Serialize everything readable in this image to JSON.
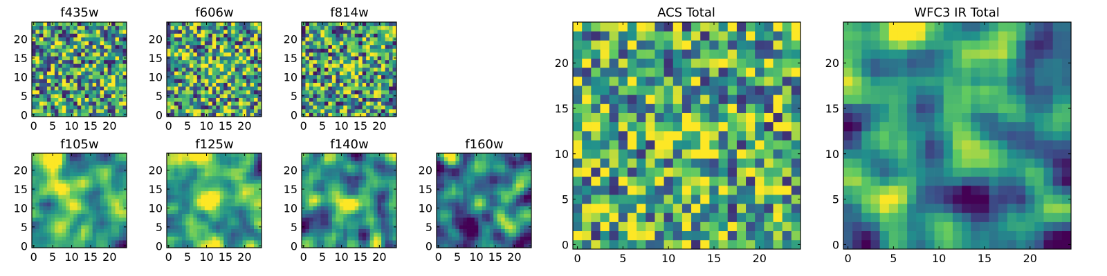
{
  "figure": {
    "colormap": "viridis",
    "colormap_stops": [
      "#440154",
      "#3b528b",
      "#21918c",
      "#5ec962",
      "#fde725"
    ],
    "axes_color": "#000000",
    "background": "#ffffff"
  },
  "chart_data": [
    {
      "type": "heatmap",
      "title": "f435w",
      "grid_size": 25,
      "xlim": [
        0,
        24
      ],
      "ylim": [
        0,
        24
      ],
      "xticks": [
        0,
        5,
        10,
        15,
        20
      ],
      "yticks": [
        0,
        5,
        10,
        15,
        20
      ],
      "texture": "pixel-noise",
      "smoothness": 0,
      "seed": 11,
      "bias": 0.08,
      "spread": 1.0,
      "warm_spots": []
    },
    {
      "type": "heatmap",
      "title": "f606w",
      "grid_size": 25,
      "xlim": [
        0,
        24
      ],
      "ylim": [
        0,
        24
      ],
      "xticks": [
        0,
        5,
        10,
        15,
        20
      ],
      "yticks": [
        0,
        5,
        10,
        15,
        20
      ],
      "texture": "pixel-noise",
      "smoothness": 0,
      "seed": 23,
      "bias": 0.08,
      "spread": 1.0,
      "warm_spots": [
        [
          13,
          12,
          0.35
        ]
      ]
    },
    {
      "type": "heatmap",
      "title": "f814w",
      "grid_size": 25,
      "xlim": [
        0,
        24
      ],
      "ylim": [
        0,
        24
      ],
      "xticks": [
        0,
        5,
        10,
        15,
        20
      ],
      "yticks": [
        0,
        5,
        10,
        15,
        20
      ],
      "texture": "pixel-noise",
      "smoothness": 0,
      "seed": 37,
      "bias": 0.05,
      "spread": 1.0,
      "warm_spots": [
        [
          12,
          11,
          0.4
        ]
      ]
    },
    {
      "type": "heatmap",
      "title": "f105w",
      "grid_size": 25,
      "xlim": [
        0,
        24
      ],
      "ylim": [
        0,
        24
      ],
      "xticks": [
        0,
        5,
        10,
        15,
        20
      ],
      "yticks": [
        0,
        5,
        10,
        15,
        20
      ],
      "texture": "smooth",
      "smoothness": 2,
      "seed": 41,
      "bias": 0.05,
      "spread": 1.1,
      "warm_spots": [
        [
          5,
          23,
          0.55
        ],
        [
          10,
          11,
          0.5
        ],
        [
          14,
          17,
          0.35
        ]
      ]
    },
    {
      "type": "heatmap",
      "title": "f125w",
      "grid_size": 25,
      "xlim": [
        0,
        24
      ],
      "ylim": [
        0,
        24
      ],
      "xticks": [
        0,
        5,
        10,
        15,
        20
      ],
      "yticks": [
        0,
        5,
        10,
        15,
        20
      ],
      "texture": "smooth",
      "smoothness": 2,
      "seed": 53,
      "bias": 0.1,
      "spread": 1.1,
      "warm_spots": [
        [
          8,
          23,
          0.6
        ],
        [
          11,
          12,
          0.55
        ]
      ]
    },
    {
      "type": "heatmap",
      "title": "f140w",
      "grid_size": 25,
      "xlim": [
        0,
        24
      ],
      "ylim": [
        0,
        24
      ],
      "xticks": [
        0,
        5,
        10,
        15,
        20
      ],
      "yticks": [
        0,
        5,
        10,
        15,
        20
      ],
      "texture": "smooth",
      "smoothness": 2,
      "seed": 67,
      "bias": 0.0,
      "spread": 1.1,
      "warm_spots": [
        [
          6,
          23,
          0.6
        ],
        [
          12,
          11,
          0.45
        ],
        [
          20,
          0,
          0.4
        ]
      ]
    },
    {
      "type": "heatmap",
      "title": "f160w",
      "grid_size": 25,
      "xlim": [
        0,
        24
      ],
      "ylim": [
        0,
        24
      ],
      "xticks": [
        0,
        5,
        10,
        15,
        20
      ],
      "yticks": [
        0,
        5,
        10,
        15,
        20
      ],
      "texture": "smooth",
      "smoothness": 2,
      "seed": 79,
      "bias": -0.12,
      "spread": 1.1,
      "warm_spots": [
        [
          4,
          23,
          0.5
        ],
        [
          12,
          12,
          0.4
        ]
      ]
    },
    {
      "type": "heatmap",
      "title": "ACS Total",
      "grid_size": 25,
      "xlim": [
        0,
        24
      ],
      "ylim": [
        0,
        24
      ],
      "xticks": [
        0,
        5,
        10,
        15,
        20
      ],
      "yticks": [
        0,
        5,
        10,
        15,
        20
      ],
      "texture": "pixel-noise",
      "smoothness": 0,
      "seed": 97,
      "bias": 0.12,
      "spread": 0.95,
      "warm_spots": [
        [
          13,
          12,
          0.3
        ]
      ]
    },
    {
      "type": "heatmap",
      "title": "WFC3 IR Total",
      "grid_size": 25,
      "xlim": [
        0,
        24
      ],
      "ylim": [
        0,
        24
      ],
      "xticks": [
        0,
        5,
        10,
        15,
        20
      ],
      "yticks": [
        0,
        5,
        10,
        15,
        20
      ],
      "texture": "smooth",
      "smoothness": 2,
      "seed": 131,
      "bias": -0.08,
      "spread": 1.15,
      "warm_spots": [
        [
          6,
          24,
          0.75
        ],
        [
          12,
          11,
          0.55
        ]
      ]
    }
  ]
}
